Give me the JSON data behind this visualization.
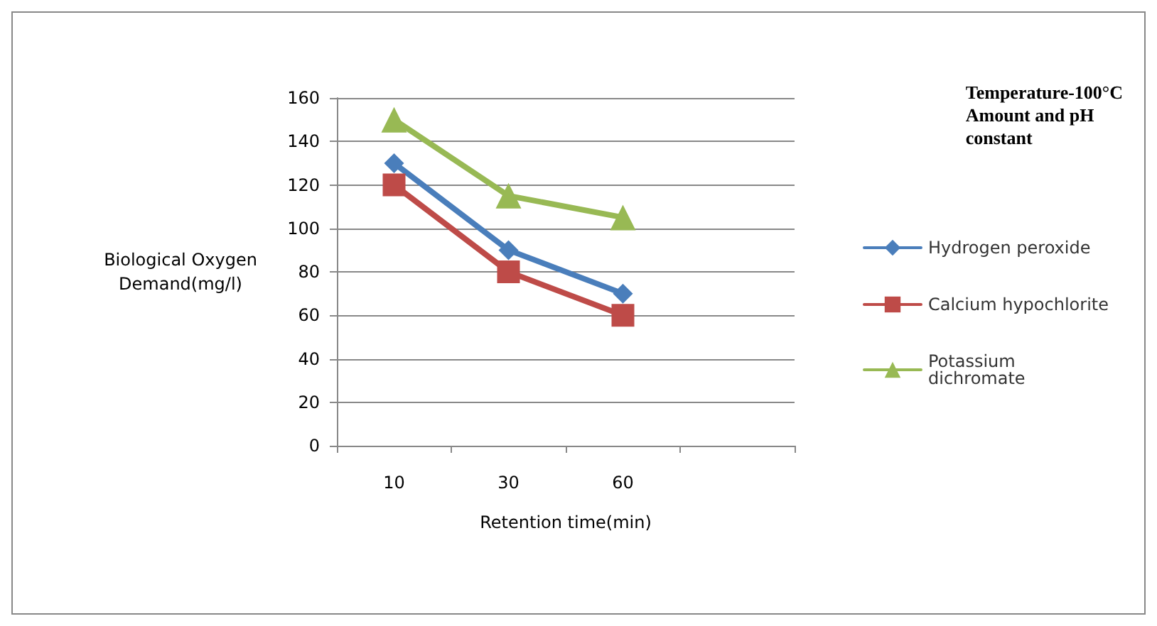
{
  "chart_data": {
    "type": "line",
    "xlabel": "Retention time(min)",
    "ylabel": "Biological Oxygen\nDemand(mg/l)",
    "categories": [
      "10",
      "30",
      "60",
      null
    ],
    "series": [
      {
        "name": "Hydrogen peroxide",
        "color": "#4a7ebb",
        "marker": "diamond",
        "values": [
          130,
          90,
          70,
          null
        ]
      },
      {
        "name": "Calcium hypochlorite",
        "color": "#be4b48",
        "marker": "square",
        "values": [
          120,
          80,
          60,
          null
        ]
      },
      {
        "name": "Potassium\ndichromate",
        "color": "#98b954",
        "marker": "triangle",
        "values": [
          150,
          115,
          105,
          null
        ]
      }
    ],
    "ylim": [
      0,
      160
    ],
    "yticks": [
      0,
      20,
      40,
      60,
      80,
      100,
      120,
      140,
      160
    ],
    "grid": "y",
    "legend": "right",
    "annotations": [
      "Temperature-100°C\nAmount and pH\nconstant"
    ]
  }
}
